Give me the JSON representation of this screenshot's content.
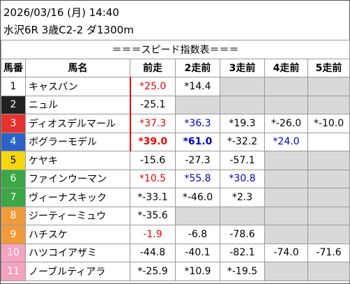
{
  "header": {
    "datetime": "2026/03/16 (月) 14:40",
    "race": "水沢6R 3歳C2-2 ダ1300m"
  },
  "table": {
    "title": "＝＝＝スピード指数表＝＝＝",
    "columns": [
      "馬番",
      "馬名",
      "前走",
      "2走前",
      "3走前",
      "4走前",
      "5走前"
    ],
    "rows": [
      [
        "1",
        "キャスパン",
        "*25.0",
        "*14.4",
        null,
        null,
        null
      ],
      [
        "2",
        "ニュル",
        "-25.1",
        null,
        null,
        null,
        null
      ],
      [
        "3",
        "ディオスデルマール",
        "*37.3",
        "*36.3",
        "*19.3",
        "*-26.0",
        "*-10.0"
      ],
      [
        "4",
        "ボグラーモデル",
        "*39.0",
        "*61.0",
        "*-32.2",
        "*24.0",
        null
      ],
      [
        "5",
        "ケヤキ",
        "-15.6",
        "-27.3",
        "-57.1",
        null,
        null
      ],
      [
        "6",
        "ファインウーマン",
        "*10.5",
        "*55.8",
        "*30.8",
        null,
        null
      ],
      [
        "7",
        "ヴィーナスキック",
        "*-33.1",
        "*-46.0",
        "*2.3",
        null,
        null
      ],
      [
        "8",
        "ジーティーミュウ",
        "*-35.6",
        null,
        null,
        null,
        null
      ],
      [
        "9",
        "ハチスケ",
        "-1.9",
        "-6.8",
        "-78.6",
        null,
        null
      ],
      [
        "10",
        "ハツコイアザミ",
        "-44.8",
        "-40.1",
        "-82.1",
        "-74.0",
        "-71.6"
      ],
      [
        "11",
        "ノーブルティアラ",
        "*-25.9",
        "*10.9",
        "*-19.5",
        null,
        null
      ]
    ]
  }
}
